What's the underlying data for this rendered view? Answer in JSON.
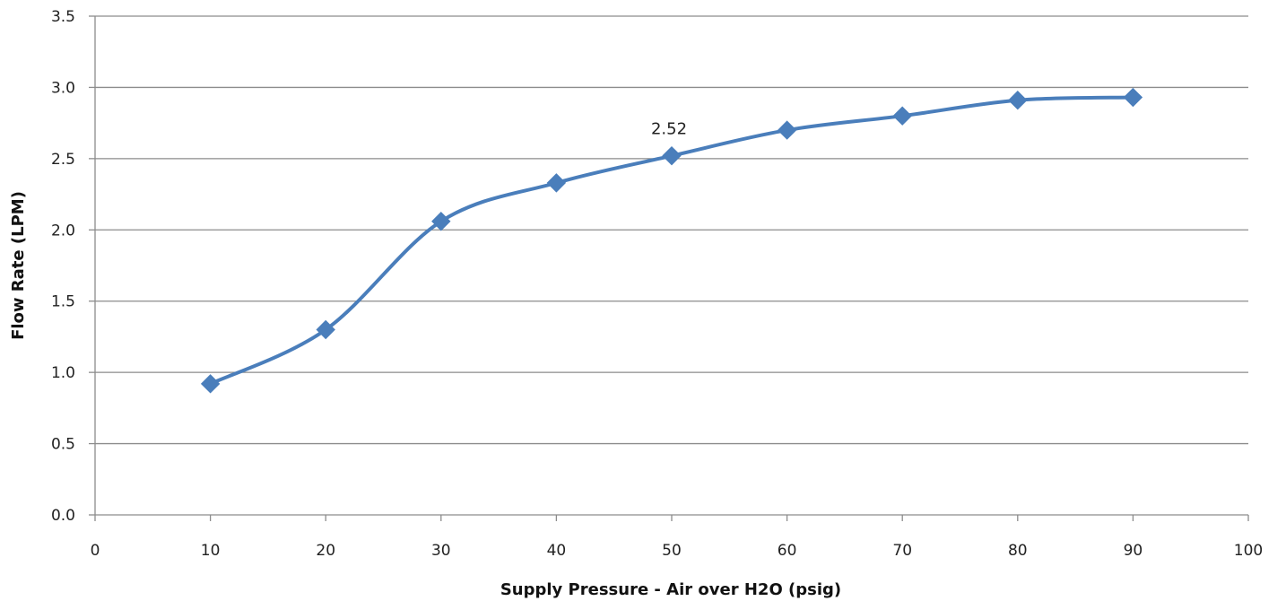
{
  "chart_data": {
    "type": "line",
    "title": "",
    "xlabel": "Supply Pressure - Air over H2O (psig)",
    "ylabel": "Flow Rate (LPM)",
    "xlim": [
      0,
      100
    ],
    "ylim": [
      0,
      3.5
    ],
    "x_ticks": [
      0,
      10,
      20,
      30,
      40,
      50,
      60,
      70,
      80,
      90,
      100
    ],
    "y_ticks": [
      "0.0",
      "0.5",
      "1.0",
      "1.5",
      "2.0",
      "2.5",
      "3.0",
      "3.5"
    ],
    "grid": "horizontal",
    "smooth": true,
    "marker": "diamond",
    "color": "#4a7ebb",
    "series": [
      {
        "x": [
          10,
          20,
          30,
          40,
          50,
          60,
          70,
          80,
          90
        ],
        "values": [
          0.92,
          1.3,
          2.06,
          2.33,
          2.52,
          2.7,
          2.8,
          2.91,
          2.93
        ]
      }
    ],
    "annotations": [
      {
        "x": 50,
        "y": 2.52,
        "text": "2.52"
      }
    ]
  }
}
